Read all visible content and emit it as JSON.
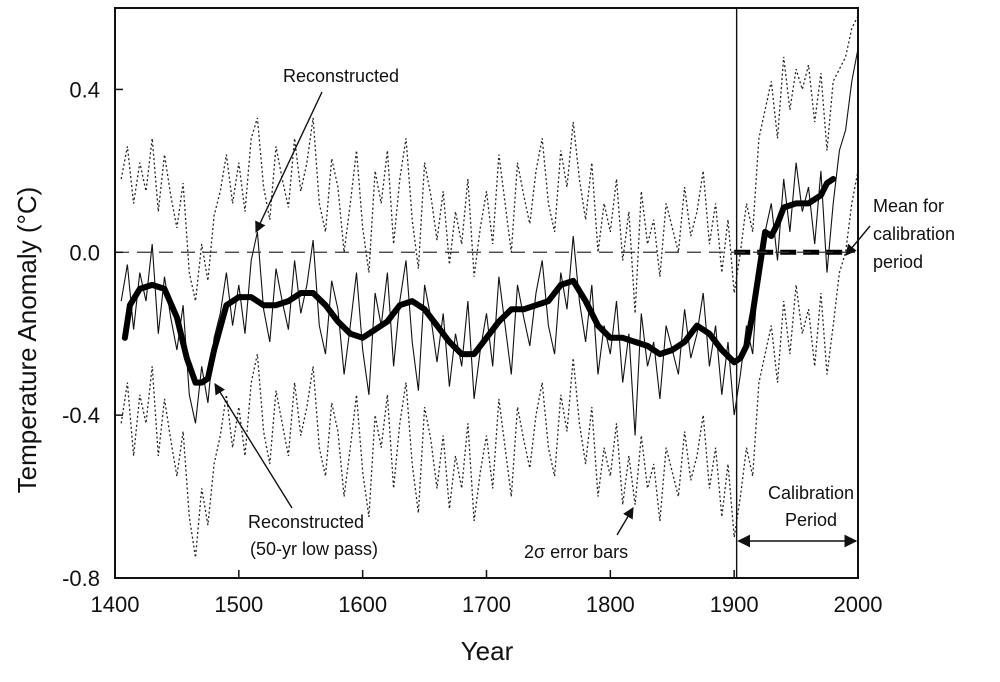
{
  "chart_data": {
    "type": "line",
    "title": "",
    "xlabel": "Year",
    "ylabel": "Temperature Anomaly (°C)",
    "xlim": [
      1400,
      2000
    ],
    "ylim": [
      -0.8,
      0.6
    ],
    "x_ticks": [
      1400,
      1500,
      1600,
      1700,
      1800,
      1900,
      2000
    ],
    "x_tick_labels": [
      "1400",
      "1500",
      "1600",
      "1700",
      "1800",
      "1900",
      "2000"
    ],
    "y_ticks": [
      0.4,
      0.0,
      -0.4,
      -0.8
    ],
    "y_tick_labels": [
      "0.4",
      "0.0",
      "-0.4",
      "-0.8"
    ],
    "grid": false,
    "legend": "none",
    "reference_lines": [
      {
        "y": 0.0,
        "style": "dashed"
      },
      {
        "x": 1902,
        "style": "solid"
      }
    ],
    "series": [
      {
        "style": "thick-solid",
        "x": [
          1408,
          1412,
          1420,
          1430,
          1440,
          1450,
          1458,
          1465,
          1470,
          1475,
          1480,
          1490,
          1500,
          1510,
          1520,
          1530,
          1540,
          1550,
          1560,
          1570,
          1580,
          1590,
          1600,
          1610,
          1620,
          1630,
          1640,
          1650,
          1660,
          1670,
          1680,
          1690,
          1700,
          1710,
          1720,
          1730,
          1740,
          1750,
          1760,
          1770,
          1780,
          1790,
          1800,
          1810,
          1820,
          1830,
          1840,
          1850,
          1860,
          1870,
          1880,
          1890,
          1900,
          1905,
          1910,
          1915,
          1920,
          1925,
          1930,
          1935,
          1940,
          1950,
          1960,
          1970,
          1975,
          1980
        ],
        "values": [
          -0.21,
          -0.13,
          -0.09,
          -0.08,
          -0.09,
          -0.16,
          -0.26,
          -0.32,
          -0.32,
          -0.31,
          -0.24,
          -0.13,
          -0.11,
          -0.11,
          -0.13,
          -0.13,
          -0.12,
          -0.1,
          -0.1,
          -0.13,
          -0.17,
          -0.2,
          -0.21,
          -0.19,
          -0.17,
          -0.13,
          -0.12,
          -0.14,
          -0.18,
          -0.22,
          -0.25,
          -0.25,
          -0.21,
          -0.17,
          -0.14,
          -0.14,
          -0.13,
          -0.12,
          -0.08,
          -0.07,
          -0.12,
          -0.18,
          -0.21,
          -0.21,
          -0.22,
          -0.23,
          -0.25,
          -0.24,
          -0.22,
          -0.18,
          -0.2,
          -0.24,
          -0.27,
          -0.26,
          -0.23,
          -0.15,
          -0.05,
          0.05,
          0.04,
          0.07,
          0.11,
          0.12,
          0.12,
          0.14,
          0.17,
          0.18
        ]
      },
      {
        "style": "thin-solid",
        "x": [
          1405,
          1410,
          1415,
          1420,
          1425,
          1430,
          1435,
          1440,
          1445,
          1450,
          1455,
          1460,
          1465,
          1470,
          1475,
          1480,
          1485,
          1490,
          1495,
          1500,
          1505,
          1510,
          1515,
          1520,
          1525,
          1530,
          1535,
          1540,
          1545,
          1550,
          1555,
          1560,
          1565,
          1570,
          1575,
          1580,
          1585,
          1590,
          1595,
          1600,
          1605,
          1610,
          1615,
          1620,
          1625,
          1630,
          1635,
          1640,
          1645,
          1650,
          1655,
          1660,
          1665,
          1670,
          1675,
          1680,
          1685,
          1690,
          1695,
          1700,
          1705,
          1710,
          1715,
          1720,
          1725,
          1730,
          1735,
          1740,
          1745,
          1750,
          1755,
          1760,
          1765,
          1770,
          1775,
          1780,
          1785,
          1790,
          1795,
          1800,
          1805,
          1810,
          1815,
          1820,
          1825,
          1830,
          1835,
          1840,
          1845,
          1850,
          1855,
          1860,
          1865,
          1870,
          1875,
          1880,
          1885,
          1890,
          1895,
          1900,
          1905,
          1910,
          1915,
          1920,
          1925,
          1930,
          1935,
          1940,
          1945,
          1950,
          1955,
          1960,
          1965,
          1970,
          1975,
          1980,
          1985,
          1990,
          1995,
          2000
        ],
        "values": [
          -0.12,
          -0.03,
          -0.19,
          -0.05,
          -0.12,
          0.02,
          -0.2,
          -0.06,
          -0.16,
          -0.24,
          -0.13,
          -0.35,
          -0.42,
          -0.28,
          -0.37,
          -0.21,
          -0.15,
          -0.05,
          -0.18,
          -0.08,
          -0.2,
          -0.02,
          0.05,
          -0.14,
          -0.22,
          -0.04,
          -0.12,
          -0.19,
          -0.02,
          -0.15,
          -0.08,
          0.03,
          -0.18,
          -0.25,
          -0.07,
          -0.14,
          -0.3,
          -0.18,
          -0.05,
          -0.24,
          -0.35,
          -0.1,
          -0.18,
          -0.05,
          -0.28,
          -0.12,
          -0.02,
          -0.22,
          -0.34,
          -0.08,
          -0.16,
          -0.27,
          -0.15,
          -0.33,
          -0.2,
          -0.28,
          -0.12,
          -0.36,
          -0.24,
          -0.15,
          -0.28,
          -0.06,
          -0.18,
          -0.3,
          -0.08,
          -0.16,
          -0.23,
          -0.1,
          -0.02,
          -0.18,
          -0.25,
          -0.05,
          -0.14,
          0.04,
          -0.12,
          -0.22,
          -0.08,
          -0.3,
          -0.18,
          -0.25,
          -0.12,
          -0.32,
          -0.2,
          -0.45,
          -0.15,
          -0.28,
          -0.22,
          -0.36,
          -0.18,
          -0.24,
          -0.3,
          -0.14,
          -0.26,
          -0.2,
          -0.1,
          -0.28,
          -0.18,
          -0.35,
          -0.22,
          -0.4,
          -0.3,
          -0.18,
          -0.25,
          -0.02,
          0.05,
          0.12,
          -0.02,
          0.18,
          0.05,
          0.22,
          0.1,
          0.16,
          0.02,
          0.2,
          -0.05,
          0.12,
          0.25,
          0.3,
          0.42,
          0.5
        ]
      },
      {
        "style": "dotted-upper",
        "x": [
          1405,
          1410,
          1415,
          1420,
          1425,
          1430,
          1435,
          1440,
          1445,
          1450,
          1455,
          1460,
          1465,
          1470,
          1475,
          1480,
          1485,
          1490,
          1495,
          1500,
          1505,
          1510,
          1515,
          1520,
          1525,
          1530,
          1535,
          1540,
          1545,
          1550,
          1555,
          1560,
          1565,
          1570,
          1575,
          1580,
          1585,
          1590,
          1595,
          1600,
          1605,
          1610,
          1615,
          1620,
          1625,
          1630,
          1635,
          1640,
          1645,
          1650,
          1655,
          1660,
          1665,
          1670,
          1675,
          1680,
          1685,
          1690,
          1695,
          1700,
          1705,
          1710,
          1715,
          1720,
          1725,
          1730,
          1735,
          1740,
          1745,
          1750,
          1755,
          1760,
          1765,
          1770,
          1775,
          1780,
          1785,
          1790,
          1795,
          1800,
          1805,
          1810,
          1815,
          1820,
          1825,
          1830,
          1835,
          1840,
          1845,
          1850,
          1855,
          1860,
          1865,
          1870,
          1875,
          1880,
          1885,
          1890,
          1895,
          1900,
          1905,
          1910,
          1915,
          1920,
          1925,
          1930,
          1935,
          1940,
          1945,
          1950,
          1955,
          1960,
          1965,
          1970,
          1975,
          1980,
          1985,
          1990,
          1995,
          2000
        ],
        "values": [
          0.18,
          0.26,
          0.12,
          0.22,
          0.15,
          0.28,
          0.1,
          0.24,
          0.14,
          0.06,
          0.17,
          -0.05,
          -0.12,
          0.02,
          -0.07,
          0.09,
          0.15,
          0.24,
          0.12,
          0.22,
          0.1,
          0.28,
          0.33,
          0.16,
          0.08,
          0.26,
          0.18,
          0.11,
          0.28,
          0.15,
          0.22,
          0.33,
          0.12,
          0.05,
          0.23,
          0.16,
          0.0,
          0.12,
          0.25,
          0.06,
          -0.05,
          0.2,
          0.12,
          0.25,
          0.02,
          0.18,
          0.28,
          0.08,
          -0.04,
          0.22,
          0.14,
          0.03,
          0.15,
          -0.03,
          0.1,
          0.02,
          0.18,
          -0.06,
          0.06,
          0.15,
          0.02,
          0.24,
          0.12,
          0.0,
          0.22,
          0.14,
          0.07,
          0.2,
          0.28,
          0.12,
          0.05,
          0.25,
          0.16,
          0.32,
          0.18,
          0.08,
          0.22,
          0.0,
          0.12,
          0.05,
          0.18,
          -0.02,
          0.1,
          -0.15,
          0.15,
          0.02,
          0.08,
          -0.06,
          0.12,
          0.06,
          0.0,
          0.16,
          0.04,
          0.1,
          0.2,
          0.02,
          0.12,
          -0.05,
          0.08,
          -0.1,
          0.0,
          0.12,
          0.05,
          0.28,
          0.35,
          0.42,
          0.28,
          0.48,
          0.35,
          0.45,
          0.4,
          0.46,
          0.32,
          0.44,
          0.25,
          0.42,
          0.45,
          0.48,
          0.55,
          0.58
        ]
      },
      {
        "style": "dotted-lower",
        "x": [
          1405,
          1410,
          1415,
          1420,
          1425,
          1430,
          1435,
          1440,
          1445,
          1450,
          1455,
          1460,
          1465,
          1470,
          1475,
          1480,
          1485,
          1490,
          1495,
          1500,
          1505,
          1510,
          1515,
          1520,
          1525,
          1530,
          1535,
          1540,
          1545,
          1550,
          1555,
          1560,
          1565,
          1570,
          1575,
          1580,
          1585,
          1590,
          1595,
          1600,
          1605,
          1610,
          1615,
          1620,
          1625,
          1630,
          1635,
          1640,
          1645,
          1650,
          1655,
          1660,
          1665,
          1670,
          1675,
          1680,
          1685,
          1690,
          1695,
          1700,
          1705,
          1710,
          1715,
          1720,
          1725,
          1730,
          1735,
          1740,
          1745,
          1750,
          1755,
          1760,
          1765,
          1770,
          1775,
          1780,
          1785,
          1790,
          1795,
          1800,
          1805,
          1810,
          1815,
          1820,
          1825,
          1830,
          1835,
          1840,
          1845,
          1850,
          1855,
          1860,
          1865,
          1870,
          1875,
          1880,
          1885,
          1890,
          1895,
          1900,
          1905,
          1910,
          1915,
          1920,
          1925,
          1930,
          1935,
          1940,
          1945,
          1950,
          1955,
          1960,
          1965,
          1970,
          1975,
          1980,
          1985,
          1990,
          1995,
          2000
        ],
        "values": [
          -0.42,
          -0.32,
          -0.5,
          -0.35,
          -0.42,
          -0.28,
          -0.5,
          -0.36,
          -0.46,
          -0.55,
          -0.44,
          -0.65,
          -0.75,
          -0.58,
          -0.67,
          -0.52,
          -0.45,
          -0.35,
          -0.48,
          -0.38,
          -0.5,
          -0.32,
          -0.25,
          -0.44,
          -0.52,
          -0.34,
          -0.42,
          -0.5,
          -0.32,
          -0.45,
          -0.38,
          -0.28,
          -0.48,
          -0.55,
          -0.37,
          -0.44,
          -0.6,
          -0.48,
          -0.35,
          -0.54,
          -0.65,
          -0.4,
          -0.48,
          -0.35,
          -0.58,
          -0.42,
          -0.32,
          -0.52,
          -0.64,
          -0.38,
          -0.46,
          -0.58,
          -0.45,
          -0.63,
          -0.5,
          -0.58,
          -0.42,
          -0.66,
          -0.54,
          -0.45,
          -0.58,
          -0.36,
          -0.48,
          -0.6,
          -0.38,
          -0.46,
          -0.53,
          -0.4,
          -0.32,
          -0.48,
          -0.55,
          -0.35,
          -0.44,
          -0.26,
          -0.42,
          -0.52,
          -0.38,
          -0.6,
          -0.48,
          -0.55,
          -0.42,
          -0.62,
          -0.5,
          -0.62,
          -0.45,
          -0.58,
          -0.52,
          -0.66,
          -0.48,
          -0.54,
          -0.6,
          -0.44,
          -0.56,
          -0.5,
          -0.4,
          -0.58,
          -0.48,
          -0.65,
          -0.52,
          -0.7,
          -0.6,
          -0.48,
          -0.55,
          -0.32,
          -0.25,
          -0.18,
          -0.32,
          -0.12,
          -0.25,
          -0.08,
          -0.2,
          -0.14,
          -0.28,
          -0.1,
          -0.3,
          -0.18,
          -0.05,
          0.0,
          0.12,
          0.2
        ]
      },
      {
        "style": "thick-dashed",
        "x": [
          1900,
          1990
        ],
        "values": [
          0.0,
          0.0
        ]
      }
    ],
    "annotations": [
      {
        "text": "Reconstructed",
        "points_to": [
          1510,
          0.05
        ]
      },
      {
        "text": "Reconstructed",
        "text2": "(50-yr low pass)",
        "points_to": [
          1472,
          -0.31
        ]
      },
      {
        "text": "2σ error bars",
        "points_to": [
          1820,
          -0.62
        ]
      },
      {
        "text": "Mean for",
        "text2": "calibration",
        "text3": "period",
        "points_to": [
          1985,
          0.0
        ]
      },
      {
        "text": "Calibration",
        "text2": "Period",
        "span": [
          1902,
          2000
        ]
      }
    ]
  }
}
